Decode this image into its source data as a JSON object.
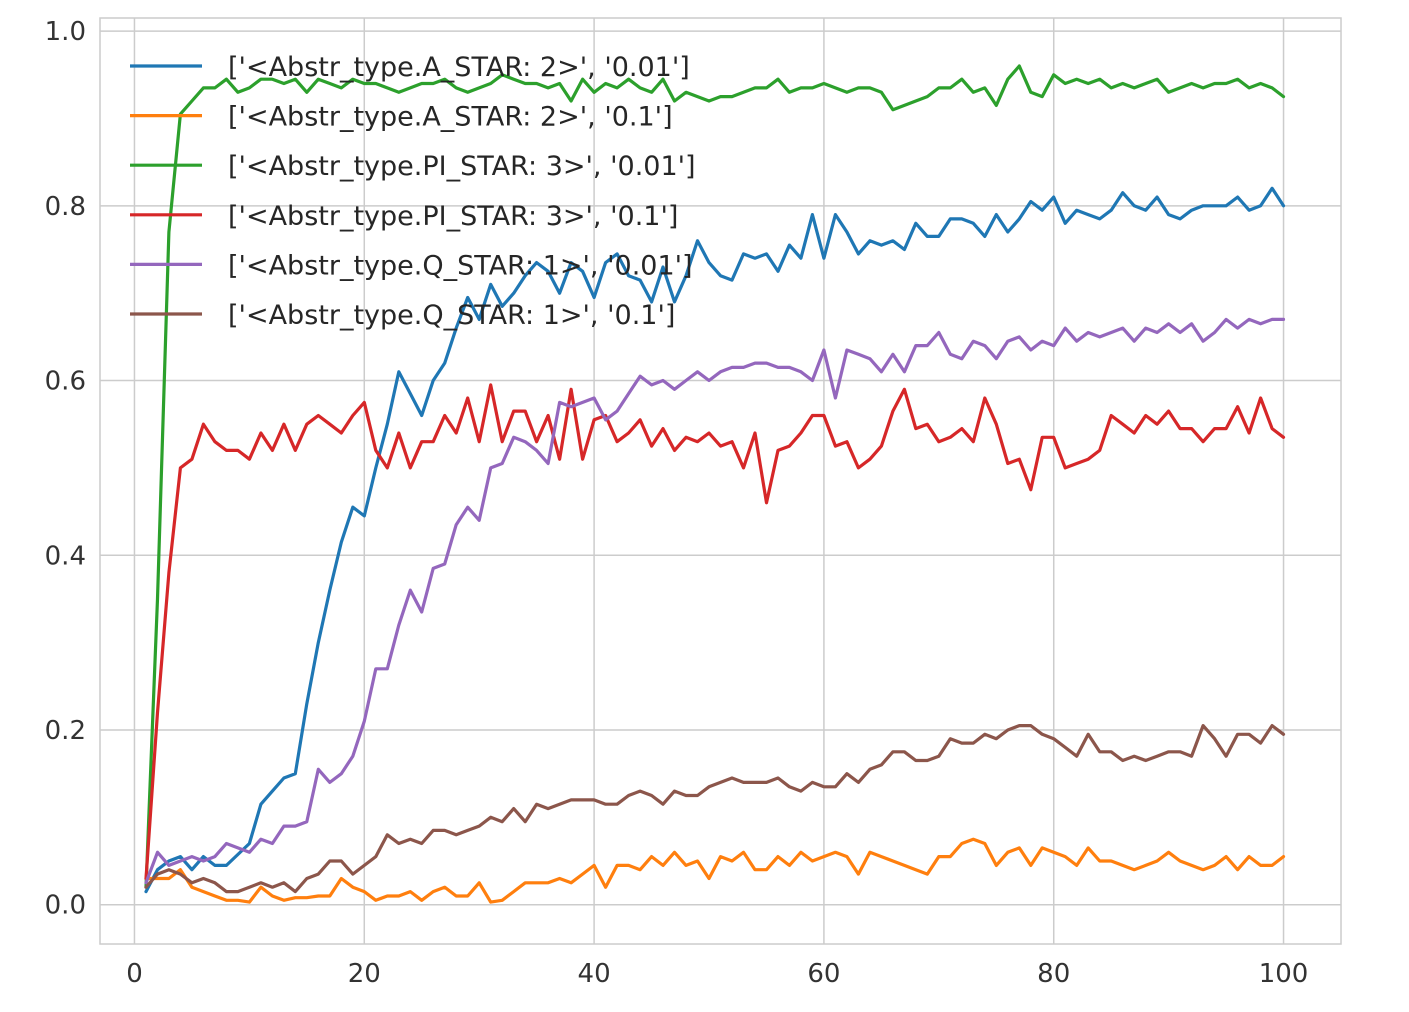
{
  "chart_data": {
    "type": "line",
    "title": "",
    "xlabel": "",
    "ylabel": "",
    "xlim": [
      -3,
      105
    ],
    "ylim": [
      -0.045,
      1.015
    ],
    "grid": true,
    "legend_placement": "top-left",
    "x_ticks": [
      0,
      20,
      40,
      60,
      80,
      100
    ],
    "y_ticks": [
      0.0,
      0.2,
      0.4,
      0.6,
      0.8,
      1.0
    ],
    "x_tick_labels": [
      "0",
      "20",
      "40",
      "60",
      "80",
      "100"
    ],
    "y_tick_labels": [
      "0.0",
      "0.2",
      "0.4",
      "0.6",
      "0.8",
      "1.0"
    ],
    "series": [
      {
        "name": "['<Abstr_type.A_STAR: 2>', '0.01']",
        "color": "#1f77b4",
        "x": [
          1,
          2,
          3,
          4,
          5,
          6,
          7,
          8,
          10,
          11,
          12,
          13,
          14,
          15,
          16,
          17,
          18,
          19,
          20,
          21,
          22,
          23,
          24,
          25,
          26,
          27,
          28,
          29,
          30,
          31,
          32,
          33,
          34,
          35,
          36,
          37,
          38,
          39,
          40,
          41,
          42,
          43,
          44,
          45,
          46,
          47,
          48,
          49,
          50,
          51,
          52,
          53,
          54,
          55,
          56,
          57,
          58,
          59,
          60,
          61,
          62,
          63,
          64,
          65,
          66,
          67,
          68,
          69,
          70,
          71,
          72,
          73,
          74,
          75,
          76,
          77,
          78,
          79,
          80,
          81,
          82,
          83,
          84,
          85,
          86,
          87,
          88,
          89,
          90,
          91,
          92,
          93,
          94,
          95,
          96,
          97,
          98,
          99,
          100
        ],
        "values": [
          0.015,
          0.04,
          0.05,
          0.055,
          0.04,
          0.055,
          0.045,
          0.045,
          0.07,
          0.115,
          0.13,
          0.145,
          0.15,
          0.23,
          0.3,
          0.36,
          0.415,
          0.455,
          0.445,
          0.5,
          0.55,
          0.61,
          0.585,
          0.56,
          0.6,
          0.62,
          0.66,
          0.695,
          0.67,
          0.71,
          0.685,
          0.7,
          0.72,
          0.735,
          0.725,
          0.7,
          0.735,
          0.725,
          0.695,
          0.735,
          0.745,
          0.72,
          0.715,
          0.69,
          0.73,
          0.69,
          0.72,
          0.76,
          0.735,
          0.72,
          0.715,
          0.745,
          0.74,
          0.745,
          0.725,
          0.755,
          0.74,
          0.79,
          0.74,
          0.79,
          0.77,
          0.745,
          0.76,
          0.755,
          0.76,
          0.75,
          0.78,
          0.765,
          0.765,
          0.785,
          0.785,
          0.78,
          0.765,
          0.79,
          0.77,
          0.785,
          0.805,
          0.795,
          0.81,
          0.78,
          0.795,
          0.79,
          0.785,
          0.795,
          0.815,
          0.8,
          0.795,
          0.81,
          0.79,
          0.785,
          0.795,
          0.8,
          0.8,
          0.8,
          0.81,
          0.795,
          0.8,
          0.82,
          0.8
        ]
      },
      {
        "name": "['<Abstr_type.A_STAR: 2>', '0.1']",
        "color": "#ff7f0e",
        "x": [
          1,
          2,
          3,
          4,
          5,
          6,
          7,
          8,
          9,
          10,
          11,
          12,
          13,
          14,
          15,
          16,
          17,
          18,
          19,
          20,
          21,
          22,
          23,
          24,
          25,
          26,
          27,
          28,
          29,
          30,
          31,
          32,
          33,
          34,
          35,
          36,
          37,
          38,
          39,
          40,
          41,
          42,
          43,
          44,
          45,
          46,
          47,
          48,
          49,
          50,
          51,
          52,
          53,
          54,
          55,
          56,
          57,
          58,
          59,
          60,
          61,
          62,
          63,
          64,
          65,
          66,
          67,
          68,
          69,
          70,
          71,
          72,
          73,
          74,
          75,
          76,
          77,
          78,
          79,
          80,
          81,
          82,
          83,
          84,
          85,
          86,
          87,
          88,
          89,
          90,
          91,
          92,
          93,
          94,
          95,
          96,
          97,
          98,
          99,
          100
        ],
        "values": [
          0.03,
          0.03,
          0.03,
          0.04,
          0.02,
          0.015,
          0.01,
          0.005,
          0.005,
          0.003,
          0.02,
          0.01,
          0.005,
          0.008,
          0.008,
          0.01,
          0.01,
          0.03,
          0.02,
          0.015,
          0.005,
          0.01,
          0.01,
          0.015,
          0.005,
          0.015,
          0.02,
          0.01,
          0.01,
          0.025,
          0.003,
          0.005,
          0.015,
          0.025,
          0.025,
          0.025,
          0.03,
          0.025,
          0.035,
          0.045,
          0.02,
          0.045,
          0.045,
          0.04,
          0.055,
          0.045,
          0.06,
          0.045,
          0.05,
          0.03,
          0.055,
          0.05,
          0.06,
          0.04,
          0.04,
          0.055,
          0.045,
          0.06,
          0.05,
          0.055,
          0.06,
          0.055,
          0.035,
          0.06,
          0.055,
          0.05,
          0.045,
          0.04,
          0.035,
          0.055,
          0.055,
          0.07,
          0.075,
          0.07,
          0.045,
          0.06,
          0.065,
          0.045,
          0.065,
          0.06,
          0.055,
          0.045,
          0.065,
          0.05,
          0.05,
          0.045,
          0.04,
          0.045,
          0.05,
          0.06,
          0.05,
          0.045,
          0.04,
          0.045,
          0.055,
          0.04,
          0.055,
          0.045,
          0.045,
          0.055
        ]
      },
      {
        "name": "['<Abstr_type.PI_STAR: 3>', '0.01']",
        "color": "#2ca02c",
        "x": [
          1,
          2,
          3,
          4,
          5,
          6,
          7,
          8,
          9,
          10,
          11,
          12,
          13,
          14,
          15,
          16,
          17,
          18,
          19,
          20,
          21,
          22,
          23,
          24,
          25,
          26,
          27,
          28,
          29,
          30,
          31,
          32,
          33,
          34,
          35,
          36,
          37,
          38,
          39,
          40,
          41,
          42,
          43,
          44,
          45,
          46,
          47,
          48,
          49,
          50,
          51,
          52,
          53,
          54,
          55,
          56,
          57,
          58,
          59,
          60,
          61,
          62,
          63,
          64,
          65,
          66,
          67,
          68,
          69,
          70,
          71,
          72,
          73,
          74,
          75,
          76,
          77,
          78,
          79,
          80,
          81,
          82,
          83,
          84,
          85,
          86,
          87,
          88,
          89,
          90,
          91,
          92,
          93,
          94,
          95,
          96,
          97,
          98,
          99,
          100
        ],
        "values": [
          0.02,
          0.35,
          0.77,
          0.905,
          0.92,
          0.935,
          0.935,
          0.945,
          0.93,
          0.935,
          0.945,
          0.945,
          0.94,
          0.945,
          0.93,
          0.945,
          0.94,
          0.935,
          0.945,
          0.94,
          0.94,
          0.935,
          0.93,
          0.935,
          0.94,
          0.94,
          0.945,
          0.935,
          0.93,
          0.935,
          0.94,
          0.95,
          0.945,
          0.94,
          0.94,
          0.935,
          0.94,
          0.92,
          0.945,
          0.93,
          0.94,
          0.935,
          0.945,
          0.935,
          0.93,
          0.945,
          0.92,
          0.93,
          0.925,
          0.92,
          0.925,
          0.925,
          0.93,
          0.935,
          0.935,
          0.945,
          0.93,
          0.935,
          0.935,
          0.94,
          0.935,
          0.93,
          0.935,
          0.935,
          0.93,
          0.91,
          0.915,
          0.92,
          0.925,
          0.935,
          0.935,
          0.945,
          0.93,
          0.935,
          0.915,
          0.945,
          0.96,
          0.93,
          0.925,
          0.95,
          0.94,
          0.945,
          0.94,
          0.945,
          0.935,
          0.94,
          0.935,
          0.94,
          0.945,
          0.93,
          0.935,
          0.94,
          0.935,
          0.94,
          0.94,
          0.945,
          0.935,
          0.94,
          0.935,
          0.925
        ]
      },
      {
        "name": "['<Abstr_type.PI_STAR: 3>', '0.1']",
        "color": "#d62728",
        "x": [
          1,
          2,
          3,
          4,
          5,
          6,
          7,
          8,
          9,
          10,
          11,
          12,
          13,
          14,
          15,
          16,
          17,
          18,
          19,
          20,
          21,
          22,
          23,
          24,
          25,
          26,
          27,
          28,
          29,
          30,
          31,
          32,
          33,
          34,
          35,
          36,
          37,
          38,
          39,
          40,
          41,
          42,
          43,
          44,
          45,
          46,
          47,
          48,
          49,
          50,
          51,
          52,
          53,
          54,
          55,
          56,
          57,
          58,
          59,
          60,
          61,
          62,
          63,
          64,
          65,
          66,
          67,
          68,
          69,
          70,
          71,
          72,
          73,
          74,
          75,
          76,
          77,
          78,
          79,
          80,
          81,
          82,
          83,
          84,
          85,
          86,
          87,
          88,
          89,
          90,
          91,
          92,
          93,
          94,
          95,
          96,
          97,
          98,
          99,
          100
        ],
        "values": [
          0.03,
          0.22,
          0.38,
          0.5,
          0.51,
          0.55,
          0.53,
          0.52,
          0.52,
          0.51,
          0.54,
          0.52,
          0.55,
          0.52,
          0.55,
          0.56,
          0.55,
          0.54,
          0.56,
          0.575,
          0.52,
          0.5,
          0.54,
          0.5,
          0.53,
          0.53,
          0.56,
          0.54,
          0.58,
          0.53,
          0.595,
          0.53,
          0.565,
          0.565,
          0.53,
          0.56,
          0.51,
          0.59,
          0.51,
          0.555,
          0.56,
          0.53,
          0.54,
          0.555,
          0.525,
          0.545,
          0.52,
          0.535,
          0.53,
          0.54,
          0.525,
          0.53,
          0.5,
          0.54,
          0.46,
          0.52,
          0.525,
          0.54,
          0.56,
          0.56,
          0.525,
          0.53,
          0.5,
          0.51,
          0.525,
          0.565,
          0.59,
          0.545,
          0.55,
          0.53,
          0.535,
          0.545,
          0.53,
          0.58,
          0.55,
          0.505,
          0.51,
          0.475,
          0.535,
          0.535,
          0.5,
          0.505,
          0.51,
          0.52,
          0.56,
          0.55,
          0.54,
          0.56,
          0.55,
          0.565,
          0.545,
          0.545,
          0.53,
          0.545,
          0.545,
          0.57,
          0.54,
          0.58,
          0.545,
          0.535
        ]
      },
      {
        "name": "['<Abstr_type.Q_STAR: 1>', '0.01']",
        "color": "#9467bd",
        "x": [
          1,
          2,
          3,
          4,
          5,
          6,
          7,
          8,
          9,
          10,
          11,
          12,
          13,
          14,
          15,
          16,
          17,
          18,
          19,
          20,
          21,
          22,
          23,
          24,
          25,
          26,
          27,
          28,
          29,
          30,
          31,
          32,
          33,
          34,
          35,
          36,
          37,
          38,
          39,
          40,
          41,
          42,
          43,
          44,
          45,
          46,
          47,
          48,
          49,
          50,
          51,
          52,
          53,
          54,
          55,
          56,
          57,
          58,
          59,
          60,
          61,
          62,
          63,
          64,
          65,
          66,
          67,
          68,
          69,
          70,
          71,
          72,
          73,
          74,
          75,
          76,
          77,
          78,
          79,
          80,
          81,
          82,
          83,
          84,
          85,
          86,
          87,
          88,
          89,
          90,
          91,
          92,
          93,
          94,
          95,
          96,
          97,
          98,
          99,
          100
        ],
        "values": [
          0.025,
          0.06,
          0.045,
          0.05,
          0.055,
          0.05,
          0.055,
          0.07,
          0.065,
          0.06,
          0.075,
          0.07,
          0.09,
          0.09,
          0.095,
          0.155,
          0.14,
          0.15,
          0.17,
          0.21,
          0.27,
          0.27,
          0.32,
          0.36,
          0.335,
          0.385,
          0.39,
          0.435,
          0.455,
          0.44,
          0.5,
          0.505,
          0.535,
          0.53,
          0.52,
          0.505,
          0.575,
          0.57,
          0.575,
          0.58,
          0.555,
          0.565,
          0.585,
          0.605,
          0.595,
          0.6,
          0.59,
          0.6,
          0.61,
          0.6,
          0.61,
          0.615,
          0.615,
          0.62,
          0.62,
          0.615,
          0.615,
          0.61,
          0.6,
          0.635,
          0.58,
          0.635,
          0.63,
          0.625,
          0.61,
          0.63,
          0.61,
          0.64,
          0.64,
          0.655,
          0.63,
          0.625,
          0.645,
          0.64,
          0.625,
          0.645,
          0.65,
          0.635,
          0.645,
          0.64,
          0.66,
          0.645,
          0.655,
          0.65,
          0.655,
          0.66,
          0.645,
          0.66,
          0.655,
          0.665,
          0.655,
          0.665,
          0.645,
          0.655,
          0.67,
          0.66,
          0.67,
          0.665,
          0.67,
          0.67
        ]
      },
      {
        "name": "['<Abstr_type.Q_STAR: 1>', '0.1']",
        "color": "#8c564b",
        "x": [
          1,
          2,
          3,
          4,
          5,
          6,
          7,
          8,
          9,
          10,
          11,
          12,
          13,
          14,
          15,
          16,
          17,
          18,
          19,
          20,
          21,
          22,
          23,
          24,
          25,
          26,
          27,
          28,
          29,
          30,
          31,
          32,
          33,
          34,
          35,
          36,
          37,
          38,
          39,
          40,
          41,
          42,
          43,
          44,
          45,
          46,
          47,
          48,
          49,
          50,
          51,
          52,
          53,
          54,
          55,
          56,
          57,
          58,
          59,
          60,
          61,
          62,
          63,
          64,
          65,
          66,
          67,
          68,
          69,
          70,
          71,
          72,
          73,
          74,
          75,
          76,
          77,
          78,
          79,
          80,
          81,
          82,
          83,
          84,
          85,
          86,
          87,
          88,
          89,
          90,
          91,
          92,
          93,
          94,
          95,
          96,
          97,
          98,
          99,
          100
        ],
        "values": [
          0.02,
          0.035,
          0.04,
          0.035,
          0.025,
          0.03,
          0.025,
          0.015,
          0.015,
          0.02,
          0.025,
          0.02,
          0.025,
          0.015,
          0.03,
          0.035,
          0.05,
          0.05,
          0.035,
          0.045,
          0.055,
          0.08,
          0.07,
          0.075,
          0.07,
          0.085,
          0.085,
          0.08,
          0.085,
          0.09,
          0.1,
          0.095,
          0.11,
          0.095,
          0.115,
          0.11,
          0.115,
          0.12,
          0.12,
          0.12,
          0.115,
          0.115,
          0.125,
          0.13,
          0.125,
          0.115,
          0.13,
          0.125,
          0.125,
          0.135,
          0.14,
          0.145,
          0.14,
          0.14,
          0.14,
          0.145,
          0.135,
          0.13,
          0.14,
          0.135,
          0.135,
          0.15,
          0.14,
          0.155,
          0.16,
          0.175,
          0.175,
          0.165,
          0.165,
          0.17,
          0.19,
          0.185,
          0.185,
          0.195,
          0.19,
          0.2,
          0.205,
          0.205,
          0.195,
          0.19,
          0.18,
          0.17,
          0.195,
          0.175,
          0.175,
          0.165,
          0.17,
          0.165,
          0.17,
          0.175,
          0.175,
          0.17,
          0.205,
          0.19,
          0.17,
          0.195,
          0.195,
          0.185,
          0.205,
          0.195
        ]
      }
    ]
  }
}
